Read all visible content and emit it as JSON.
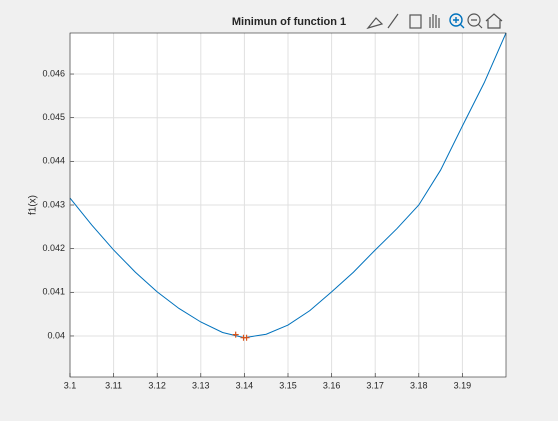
{
  "chart_data": {
    "type": "line",
    "title": "Minimun of function 1",
    "ylabel": "f1(x)",
    "x": [
      3.1,
      3.105,
      3.11,
      3.115,
      3.12,
      3.125,
      3.13,
      3.135,
      3.14,
      3.145,
      3.15,
      3.155,
      3.16,
      3.165,
      3.17,
      3.175,
      3.18,
      3.185,
      3.19,
      3.195,
      3.2
    ],
    "series": [
      {
        "color": "#0072bd",
        "values": [
          0.04316,
          0.04254,
          0.04197,
          0.04146,
          0.04101,
          0.04063,
          0.04032,
          0.04008,
          0.03996,
          0.04004,
          0.04025,
          0.04058,
          0.04101,
          0.04146,
          0.04197,
          0.04246,
          0.043,
          0.0438,
          0.04481,
          0.0458,
          0.04694
        ]
      }
    ],
    "markers": {
      "x": [
        3.138,
        3.1398,
        3.1405
      ],
      "values": [
        0.04003,
        0.03996,
        0.03996
      ],
      "color": "#d95319"
    },
    "xlim": [
      3.1,
      3.2
    ],
    "ylim": [
      0.03906,
      0.04694
    ],
    "xticks": [
      3.1,
      3.11,
      3.12,
      3.13,
      3.14,
      3.15,
      3.16,
      3.17,
      3.18,
      3.19
    ],
    "yticks": [
      0.04,
      0.041,
      0.042,
      0.043,
      0.044,
      0.045,
      0.046
    ],
    "grid": true
  }
}
